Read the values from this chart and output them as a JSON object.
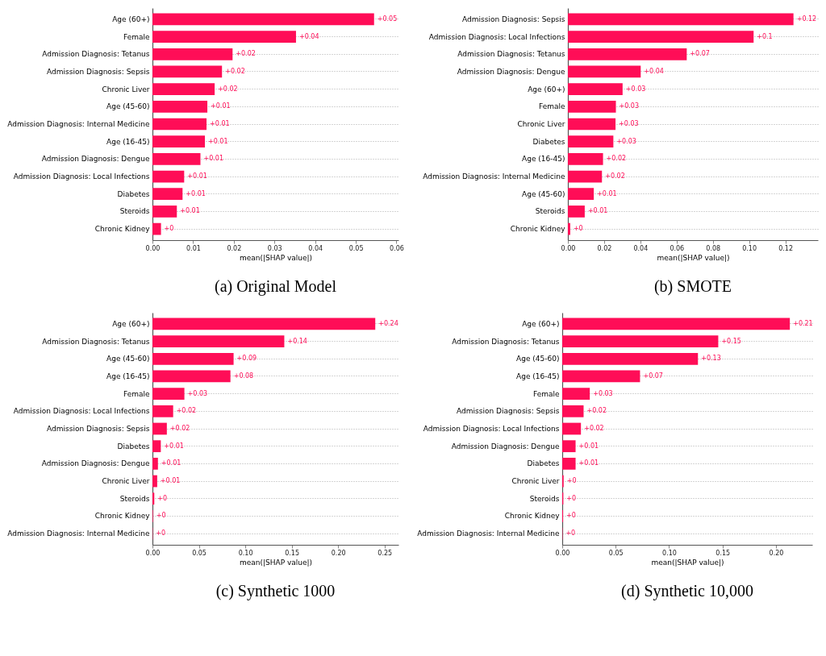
{
  "chart_data": [
    {
      "type": "bar",
      "orientation": "horizontal",
      "title": "(a) Original Model",
      "xlabel": "mean(|SHAP value|)",
      "color": "#ff0d57",
      "grid": "y",
      "categories": [
        "Age (60+)",
        "Female",
        "Admission Diagnosis: Tetanus",
        "Admission Diagnosis: Sepsis",
        "Chronic Liver",
        "Age (45-60)",
        "Admission Diagnosis: Internal Medicine",
        "Age (16-45)",
        "Admission Diagnosis: Dengue",
        "Admission Diagnosis: Local Infections",
        "Diabetes",
        "Steroids",
        "Chronic Kidney"
      ],
      "values": [
        0.0545,
        0.0353,
        0.0197,
        0.0171,
        0.0153,
        0.0135,
        0.0133,
        0.0129,
        0.0118,
        0.0078,
        0.0074,
        0.006,
        0.0021
      ],
      "value_labels": [
        "+0.05",
        "+0.04",
        "+0.02",
        "+0.02",
        "+0.02",
        "+0.01",
        "+0.01",
        "+0.01",
        "+0.01",
        "+0.01",
        "+0.01",
        "+0.01",
        "+0"
      ],
      "xlim": [
        0,
        0.0605
      ],
      "xticks": [
        {
          "value": 0,
          "label": "0.00"
        },
        {
          "value": 0.01,
          "label": "0.01"
        },
        {
          "value": 0.02,
          "label": "0.02"
        },
        {
          "value": 0.03,
          "label": "0.03"
        },
        {
          "value": 0.04,
          "label": "0.04"
        },
        {
          "value": 0.05,
          "label": "0.05"
        },
        {
          "value": 0.06,
          "label": "0.06"
        }
      ]
    },
    {
      "type": "bar",
      "orientation": "horizontal",
      "title": "(b) SMOTE",
      "xlabel": "mean(|SHAP value|)",
      "color": "#ff0d57",
      "grid": "y",
      "categories": [
        "Admission Diagnosis: Sepsis",
        "Admission Diagnosis: Local Infections",
        "Admission Diagnosis: Tetanus",
        "Admission Diagnosis: Dengue",
        "Age (60+)",
        "Female",
        "Chronic Liver",
        "Diabetes",
        "Age (16-45)",
        "Admission Diagnosis: Internal Medicine",
        "Age (45-60)",
        "Steroids",
        "Chronic Kidney"
      ],
      "values": [
        0.1245,
        0.1025,
        0.0656,
        0.0402,
        0.0302,
        0.0265,
        0.0263,
        0.0251,
        0.0194,
        0.0188,
        0.0143,
        0.0093,
        0.0013
      ],
      "value_labels": [
        "+0.12",
        "+0.1",
        "+0.07",
        "+0.04",
        "+0.03",
        "+0.03",
        "+0.03",
        "+0.03",
        "+0.02",
        "+0.02",
        "+0.01",
        "+0.01",
        "+0"
      ],
      "xlim": [
        0,
        0.138
      ],
      "xticks": [
        {
          "value": 0,
          "label": "0.00"
        },
        {
          "value": 0.02,
          "label": "0.02"
        },
        {
          "value": 0.04,
          "label": "0.04"
        },
        {
          "value": 0.06,
          "label": "0.06"
        },
        {
          "value": 0.08,
          "label": "0.08"
        },
        {
          "value": 0.1,
          "label": "0.10"
        },
        {
          "value": 0.12,
          "label": "0.12"
        }
      ]
    },
    {
      "type": "bar",
      "orientation": "horizontal",
      "title": "(c) Synthetic 1000",
      "xlabel": "mean(|SHAP value|)",
      "color": "#ff0d57",
      "grid": "y",
      "categories": [
        "Age (60+)",
        "Admission Diagnosis: Tetanus",
        "Age (45-60)",
        "Age (16-45)",
        "Female",
        "Admission Diagnosis: Local Infections",
        "Admission Diagnosis: Sepsis",
        "Diabetes",
        "Admission Diagnosis: Dengue",
        "Chronic Liver",
        "Steroids",
        "Chronic Kidney",
        "Admission Diagnosis: Internal Medicine"
      ],
      "values": [
        0.24,
        0.142,
        0.0874,
        0.084,
        0.0344,
        0.0223,
        0.0155,
        0.009,
        0.0059,
        0.0051,
        0.002,
        0.0006,
        0.0003
      ],
      "value_labels": [
        "+0.24",
        "+0.14",
        "+0.09",
        "+0.08",
        "+0.03",
        "+0.02",
        "+0.02",
        "+0.01",
        "+0.01",
        "+0.01",
        "+0",
        "+0",
        "+0"
      ],
      "xlim": [
        0,
        0.265
      ],
      "xticks": [
        {
          "value": 0,
          "label": "0.00"
        },
        {
          "value": 0.05,
          "label": "0.05"
        },
        {
          "value": 0.1,
          "label": "0.10"
        },
        {
          "value": 0.15,
          "label": "0.15"
        },
        {
          "value": 0.2,
          "label": "0.20"
        },
        {
          "value": 0.25,
          "label": "0.25"
        }
      ]
    },
    {
      "type": "bar",
      "orientation": "horizontal",
      "title": "(d) Synthetic 10,000",
      "xlabel": "mean(|SHAP value|)",
      "color": "#ff0d57",
      "grid": "y",
      "categories": [
        "Age (60+)",
        "Admission Diagnosis: Tetanus",
        "Age (45-60)",
        "Age (16-45)",
        "Female",
        "Admission Diagnosis: Sepsis",
        "Admission Diagnosis: Local Infections",
        "Admission Diagnosis: Dengue",
        "Diabetes",
        "Chronic Liver",
        "Steroids",
        "Chronic Kidney",
        "Admission Diagnosis: Internal Medicine"
      ],
      "values": [
        0.213,
        0.146,
        0.127,
        0.0728,
        0.0258,
        0.02,
        0.0175,
        0.0125,
        0.0125,
        0.0013,
        0.001,
        0.0008,
        0.0003
      ],
      "value_labels": [
        "+0.21",
        "+0.15",
        "+0.13",
        "+0.07",
        "+0.03",
        "+0.02",
        "+0.02",
        "+0.01",
        "+0.01",
        "+0",
        "+0",
        "+0",
        "+0"
      ],
      "xlim": [
        0,
        0.234
      ],
      "xticks": [
        {
          "value": 0,
          "label": "0.00"
        },
        {
          "value": 0.05,
          "label": "0.05"
        },
        {
          "value": 0.1,
          "label": "0.10"
        },
        {
          "value": 0.15,
          "label": "0.15"
        },
        {
          "value": 0.2,
          "label": "0.20"
        }
      ]
    }
  ]
}
